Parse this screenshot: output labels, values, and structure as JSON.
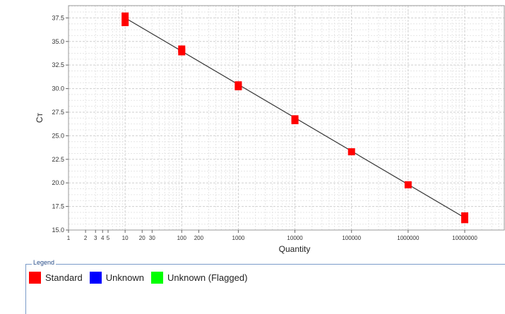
{
  "chart_data": {
    "type": "scatter",
    "xlabel": "Quantity",
    "ylabel": "Cт",
    "x_scale": "log",
    "xlim": [
      1,
      50000000
    ],
    "ylim": [
      15.0,
      38.8
    ],
    "grid": true,
    "y_ticks": [
      "15.0",
      "17.5",
      "20.0",
      "22.5",
      "25.0",
      "27.5",
      "30.0",
      "32.5",
      "35.0",
      "37.5"
    ],
    "x_ticks": [
      {
        "value": 1,
        "label": "1"
      },
      {
        "value": 2,
        "label": "2"
      },
      {
        "value": 3,
        "label": "3"
      },
      {
        "value": 4,
        "label": "4"
      },
      {
        "value": 5,
        "label": "5"
      },
      {
        "value": 10,
        "label": "10"
      },
      {
        "value": 20,
        "label": "20"
      },
      {
        "value": 30,
        "label": "30"
      },
      {
        "value": 100,
        "label": "100"
      },
      {
        "value": 200,
        "label": "200"
      },
      {
        "value": 1000,
        "label": "1000"
      },
      {
        "value": 10000,
        "label": "10000"
      },
      {
        "value": 100000,
        "label": "100000"
      },
      {
        "value": 1000000,
        "label": "1000000"
      },
      {
        "value": 10000000,
        "label": "10000000"
      }
    ],
    "series": [
      {
        "name": "Standard",
        "color": "#ff0000",
        "points": [
          {
            "x": 10,
            "y": 37.7
          },
          {
            "x": 10,
            "y": 37.0
          },
          {
            "x": 100,
            "y": 34.2
          },
          {
            "x": 100,
            "y": 33.9
          },
          {
            "x": 1000,
            "y": 30.4
          },
          {
            "x": 1000,
            "y": 30.2
          },
          {
            "x": 10000,
            "y": 26.8
          },
          {
            "x": 10000,
            "y": 26.6
          },
          {
            "x": 100000,
            "y": 23.3
          },
          {
            "x": 1000000,
            "y": 19.8
          },
          {
            "x": 10000000,
            "y": 16.5
          },
          {
            "x": 10000000,
            "y": 16.1
          }
        ]
      }
    ],
    "fit_line": {
      "color": "#333333",
      "from": {
        "x": 10,
        "y": 37.5
      },
      "to": {
        "x": 10000000,
        "y": 16.3
      }
    }
  },
  "legend": {
    "title": "Legend",
    "items": [
      {
        "label": "Standard",
        "color": "#ff0000"
      },
      {
        "label": "Unknown",
        "color": "#0000ff"
      },
      {
        "label": "Unknown (Flagged)",
        "color": "#00ff00"
      }
    ]
  }
}
